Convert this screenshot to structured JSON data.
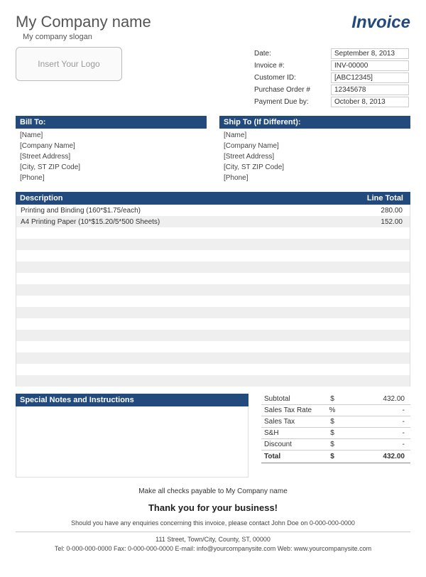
{
  "header": {
    "company_name": "My Company name",
    "slogan": "My company slogan",
    "invoice_title": "Invoice",
    "logo_placeholder": "Insert Your Logo"
  },
  "meta": {
    "rows": [
      {
        "label": "Date:",
        "value": "September 8, 2013"
      },
      {
        "label": "Invoice #:",
        "value": "INV-00000"
      },
      {
        "label": "Customer ID:",
        "value": "[ABC12345]"
      },
      {
        "label": "Purchase Order #",
        "value": "12345678"
      },
      {
        "label": "Payment Due by:",
        "value": "October 8, 2013"
      }
    ]
  },
  "bill_to": {
    "title": "Bill To:",
    "lines": [
      "[Name]",
      "[Company Name]",
      "[Street Address]",
      "[City, ST  ZIP Code]",
      "[Phone]"
    ]
  },
  "ship_to": {
    "title": "Ship To (If Different):",
    "lines": [
      "[Name]",
      "[Company Name]",
      "[Street Address]",
      "[City, ST  ZIP Code]",
      "[Phone]"
    ]
  },
  "items": {
    "header_desc": "Description",
    "header_total": "Line Total",
    "rows": [
      {
        "desc": "Printing and Binding (160*$1.75/each)",
        "total": "280.00"
      },
      {
        "desc": "A4 Printing Paper (10*$15.20/5*500 Sheets)",
        "total": "152.00"
      },
      {
        "desc": "",
        "total": ""
      },
      {
        "desc": "",
        "total": ""
      },
      {
        "desc": "",
        "total": ""
      },
      {
        "desc": "",
        "total": ""
      },
      {
        "desc": "",
        "total": ""
      },
      {
        "desc": "",
        "total": ""
      },
      {
        "desc": "",
        "total": ""
      },
      {
        "desc": "",
        "total": ""
      },
      {
        "desc": "",
        "total": ""
      },
      {
        "desc": "",
        "total": ""
      },
      {
        "desc": "",
        "total": ""
      },
      {
        "desc": "",
        "total": ""
      },
      {
        "desc": "",
        "total": ""
      },
      {
        "desc": "",
        "total": ""
      }
    ]
  },
  "notes": {
    "title": "Special Notes and Instructions"
  },
  "totals": {
    "rows": [
      {
        "label": "Subtotal",
        "symbol": "$",
        "value": "432.00"
      },
      {
        "label": "Sales Tax Rate",
        "symbol": "%",
        "value": "-"
      },
      {
        "label": "Sales Tax",
        "symbol": "$",
        "value": "-"
      },
      {
        "label": "S&H",
        "symbol": "$",
        "value": "-"
      },
      {
        "label": "Discount",
        "symbol": "$",
        "value": "-"
      }
    ],
    "total_label": "Total",
    "total_symbol": "$",
    "total_value": "432.00"
  },
  "footer": {
    "payable": "Make all checks payable to My Company name",
    "thank_you": "Thank you for your business!",
    "enquiries": "Should you have any enquiries concerning this invoice, please contact John Doe on 0-000-000-0000",
    "address": "111 Street, Town/City, County, ST, 00000",
    "contact": "Tel: 0-000-000-0000 Fax: 0-000-000-0000 E-mail: info@yourcompanysite.com Web: www.yourcompanysite.com"
  },
  "colors": {
    "primary": "#234a7d",
    "stripe": "#efefef",
    "border": "#cccccc"
  }
}
